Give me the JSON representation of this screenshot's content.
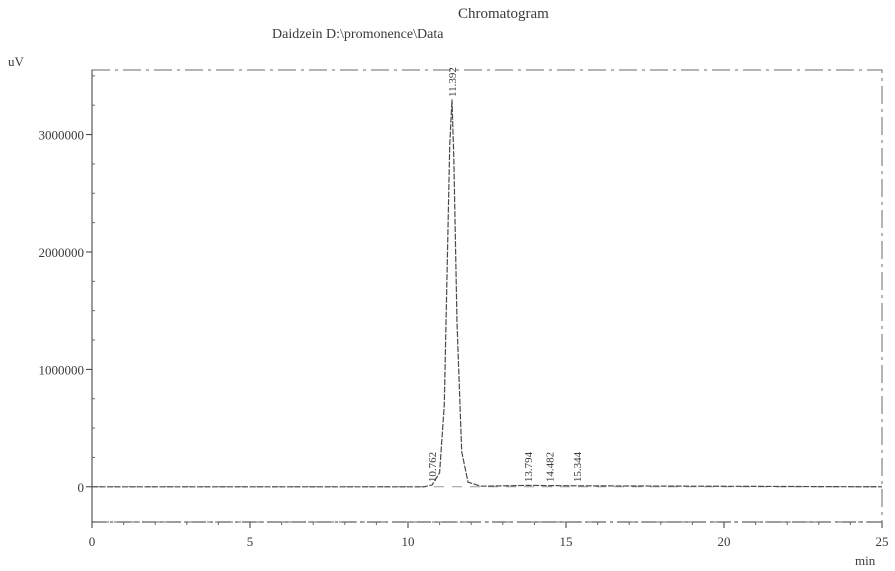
{
  "chart_data": {
    "type": "line",
    "title": "Chromatogram",
    "subtitle": "Daidzein  D:\\promonence\\Data",
    "xlabel": "min",
    "ylabel": "uV",
    "xlim": [
      0,
      25
    ],
    "ylim": [
      -300000,
      3550000
    ],
    "x_ticks": [
      0,
      5,
      10,
      15,
      20,
      25
    ],
    "y_ticks": [
      0,
      1000000,
      2000000,
      3000000
    ],
    "x_tick_labels": [
      "0",
      "5",
      "10",
      "15",
      "20",
      "25"
    ],
    "y_tick_labels": [
      "0",
      "1000000",
      "2000000",
      "3000000"
    ],
    "series": [
      {
        "x": [
          0,
          10.5,
          10.762,
          11.0,
          11.15,
          11.25,
          11.32,
          11.392,
          11.45,
          11.55,
          11.7,
          11.9,
          12.3,
          13.794,
          14.482,
          15.344,
          25
        ],
        "y": [
          0,
          0,
          15000,
          120000,
          700000,
          2000000,
          2900000,
          3300000,
          2800000,
          1400000,
          300000,
          40000,
          5000,
          12000,
          10000,
          8000,
          0
        ]
      }
    ],
    "peaks": [
      {
        "rt": 10.762,
        "label": "10.762"
      },
      {
        "rt": 11.392,
        "label": "11.392"
      },
      {
        "rt": 13.794,
        "label": "13.794"
      },
      {
        "rt": 14.482,
        "label": "14.482"
      },
      {
        "rt": 15.344,
        "label": "15.344"
      }
    ],
    "grid": false,
    "legend": "none"
  }
}
